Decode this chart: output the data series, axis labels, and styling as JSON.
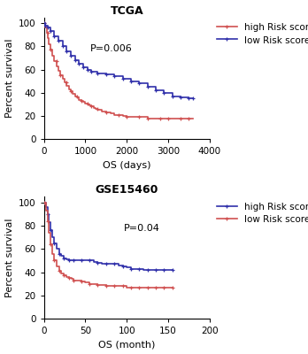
{
  "panel1": {
    "title": "TCGA",
    "pvalue": "P=0.006",
    "xlabel": "OS (days)",
    "ylabel": "Percent survival",
    "xlim": [
      0,
      4000
    ],
    "ylim": [
      0,
      105
    ],
    "xticks": [
      0,
      1000,
      2000,
      3000,
      4000
    ],
    "yticks": [
      0,
      20,
      40,
      60,
      80,
      100
    ],
    "high_color": "#D05050",
    "low_color": "#3030AA",
    "high_label": "high Risk score",
    "low_label": "low Risk score",
    "pvalue_x": 0.28,
    "pvalue_y": 0.72,
    "high_x": [
      0,
      30,
      60,
      90,
      120,
      150,
      200,
      250,
      300,
      350,
      400,
      450,
      500,
      550,
      600,
      650,
      700,
      750,
      800,
      850,
      900,
      950,
      1000,
      1050,
      1100,
      1150,
      1200,
      1250,
      1300,
      1400,
      1500,
      1600,
      1700,
      1800,
      1900,
      2000,
      2100,
      2200,
      2300,
      2400,
      2500,
      2600,
      2700,
      2800,
      2900,
      3000,
      3100,
      3200,
      3300,
      3400,
      3500,
      3600
    ],
    "high_y": [
      100,
      96,
      92,
      87,
      82,
      77,
      72,
      67,
      63,
      59,
      55,
      52,
      49,
      46,
      43,
      41,
      39,
      37,
      36,
      34,
      33,
      32,
      31,
      30,
      29,
      28,
      27,
      26,
      25,
      24,
      23,
      22,
      21,
      21,
      20,
      19,
      19,
      19,
      19,
      19,
      18,
      18,
      18,
      18,
      18,
      18,
      18,
      18,
      18,
      18,
      18,
      18
    ],
    "low_x": [
      0,
      30,
      80,
      150,
      250,
      350,
      450,
      550,
      650,
      750,
      850,
      950,
      1050,
      1150,
      1300,
      1500,
      1700,
      1900,
      2100,
      2300,
      2500,
      2700,
      2900,
      3100,
      3300,
      3500,
      3600
    ],
    "low_y": [
      100,
      98,
      96,
      93,
      89,
      85,
      80,
      76,
      72,
      68,
      65,
      62,
      60,
      58,
      57,
      56,
      54,
      52,
      50,
      48,
      45,
      42,
      40,
      37,
      36,
      35,
      35
    ]
  },
  "panel2": {
    "title": "GSE15460",
    "pvalue": "P=0.04",
    "xlabel": "OS (month)",
    "ylabel": "Percent survival",
    "xlim": [
      0,
      200
    ],
    "ylim": [
      0,
      105
    ],
    "xticks": [
      0,
      50,
      100,
      150,
      200
    ],
    "yticks": [
      0,
      20,
      40,
      60,
      80,
      100
    ],
    "high_color": "#3030AA",
    "low_color": "#D05050",
    "high_label": "high Risk score",
    "low_label": "low Risk score",
    "pvalue_x": 0.48,
    "pvalue_y": 0.72,
    "high_x": [
      0,
      2,
      4,
      6,
      8,
      10,
      12,
      15,
      18,
      21,
      24,
      27,
      30,
      33,
      36,
      40,
      45,
      50,
      55,
      60,
      65,
      70,
      75,
      80,
      85,
      90,
      95,
      100,
      105,
      110,
      115,
      120,
      125,
      130,
      135,
      140,
      145,
      150,
      155
    ],
    "high_y": [
      100,
      96,
      90,
      83,
      76,
      70,
      65,
      60,
      56,
      54,
      52,
      51,
      50,
      50,
      50,
      50,
      50,
      50,
      50,
      49,
      48,
      47,
      47,
      47,
      47,
      46,
      45,
      44,
      43,
      43,
      43,
      42,
      42,
      42,
      42,
      42,
      42,
      42,
      42
    ],
    "low_x": [
      0,
      2,
      4,
      6,
      8,
      10,
      12,
      15,
      18,
      21,
      24,
      27,
      30,
      33,
      36,
      40,
      45,
      50,
      55,
      60,
      65,
      70,
      75,
      80,
      85,
      90,
      95,
      100,
      105,
      110,
      115,
      120,
      125,
      130,
      135,
      140,
      145,
      150,
      155
    ],
    "low_y": [
      100,
      93,
      84,
      74,
      64,
      56,
      50,
      45,
      41,
      39,
      37,
      36,
      35,
      34,
      33,
      33,
      32,
      31,
      30,
      30,
      29,
      29,
      28,
      28,
      28,
      28,
      28,
      27,
      27,
      27,
      27,
      27,
      27,
      27,
      27,
      27,
      27,
      27,
      27
    ]
  },
  "bg_color": "#ffffff",
  "title_fontsize": 9,
  "label_fontsize": 8,
  "tick_fontsize": 7.5,
  "legend_fontsize": 7.5,
  "pvalue_fontsize": 8,
  "linewidth": 1.2,
  "marker_size": 3.5
}
